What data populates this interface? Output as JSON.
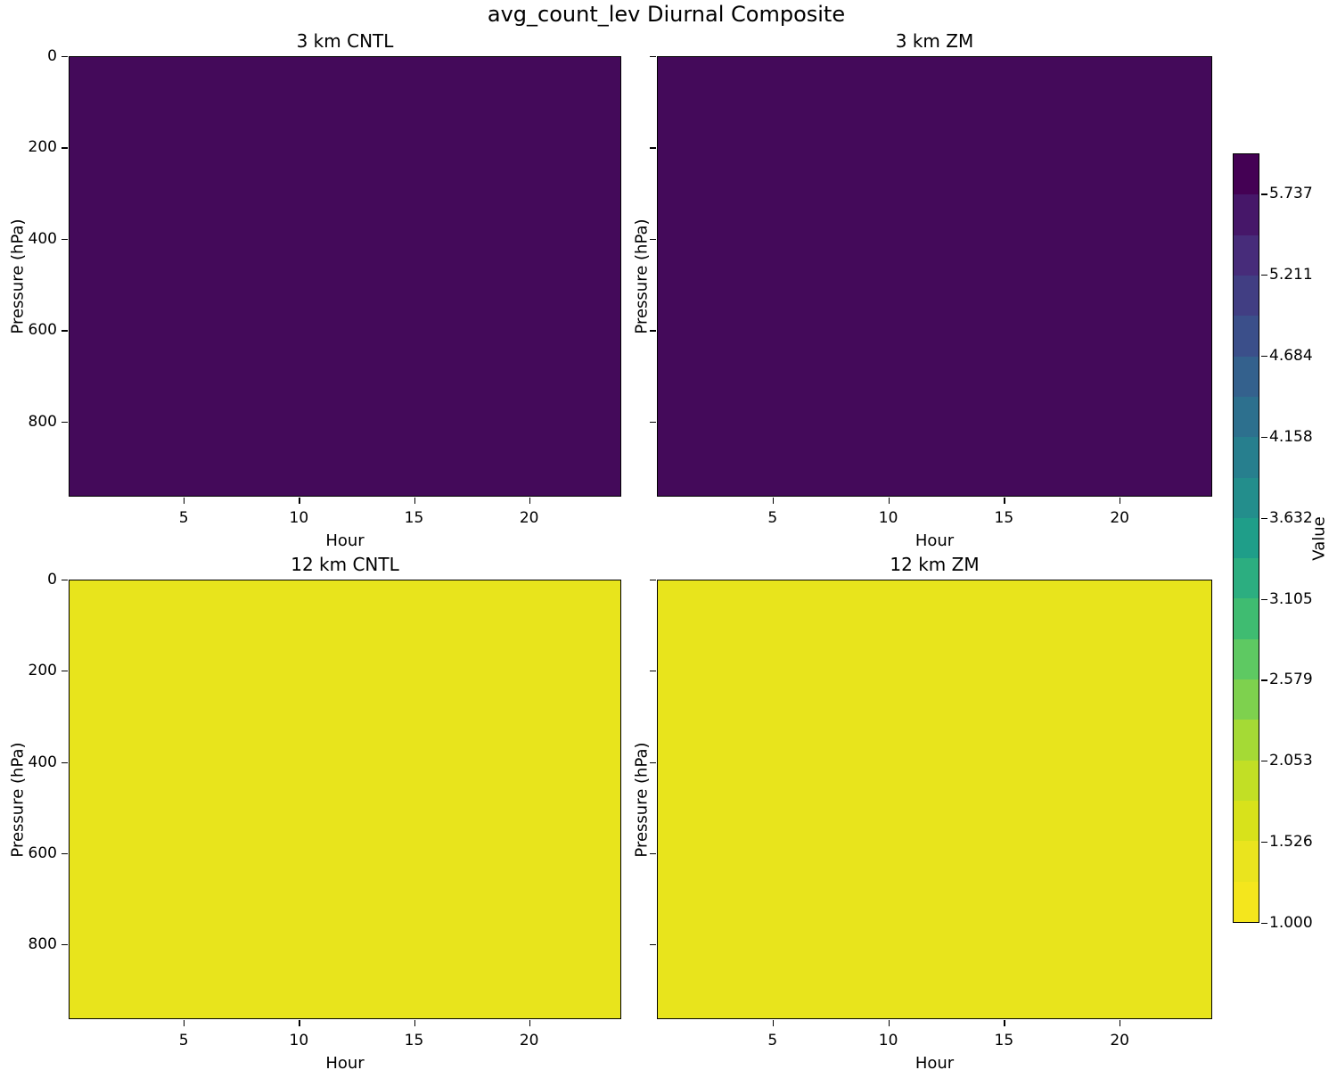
{
  "figure_title": "avg_count_lev Diurnal Composite",
  "colors": {
    "background": "#ffffff",
    "text": "#000000",
    "axis_line": "#000000",
    "fill_3km": "#440a5a",
    "fill_12km": "#e8e41c"
  },
  "chart_data": {
    "type": "heatmap",
    "title": "avg_count_lev Diurnal Composite",
    "layout": {
      "grid_rows": 2,
      "grid_cols": 2,
      "colorbar_position": "right",
      "colormap": "viridis reversed (high values dark purple, low values yellow)"
    },
    "x": {
      "label": "Hour",
      "range": [
        0,
        24
      ],
      "ticks": [
        5,
        10,
        15,
        20
      ]
    },
    "y": {
      "label": "Pressure (hPa)",
      "range": [
        0,
        964
      ],
      "ticks": [
        0,
        200,
        400,
        600,
        800
      ],
      "inverted": true
    },
    "panels": [
      {
        "title": "3 km CNTL",
        "xlabel": "Hour",
        "ylabel": "Pressure (hPa)",
        "uniform_value": 6.0,
        "fill": "#440a5a",
        "show_y_tick_labels": true
      },
      {
        "title": "3 km ZM",
        "xlabel": "Hour",
        "ylabel": "Pressure (hPa)",
        "uniform_value": 6.0,
        "fill": "#440a5a",
        "show_y_tick_labels": false
      },
      {
        "title": "12 km CNTL",
        "xlabel": "Hour",
        "ylabel": "Pressure (hPa)",
        "uniform_value": 1.0,
        "fill": "#e8e41c",
        "show_y_tick_labels": true
      },
      {
        "title": "12 km ZM",
        "xlabel": "Hour",
        "ylabel": "Pressure (hPa)",
        "uniform_value": 1.0,
        "fill": "#e8e41c",
        "show_y_tick_labels": false
      }
    ],
    "colorbar": {
      "label": "Value",
      "vmin": 1.0,
      "vmax": 6.0,
      "num_bands": 19,
      "tick_labels": [
        "5.737",
        "5.211",
        "4.684",
        "4.158",
        "3.632",
        "3.105",
        "2.579",
        "2.053",
        "1.526",
        "1.000"
      ],
      "band_colors_top_to_bottom": [
        "#440154",
        "#461769",
        "#472c7a",
        "#413e83",
        "#3b4f8a",
        "#34618d",
        "#2d708e",
        "#277f8e",
        "#238e8c",
        "#1f9e89",
        "#2cae80",
        "#3fbc71",
        "#5ec962",
        "#7ed14e",
        "#a5da35",
        "#c2df25",
        "#d8e21b",
        "#eae41e",
        "#f4e61d"
      ]
    }
  }
}
